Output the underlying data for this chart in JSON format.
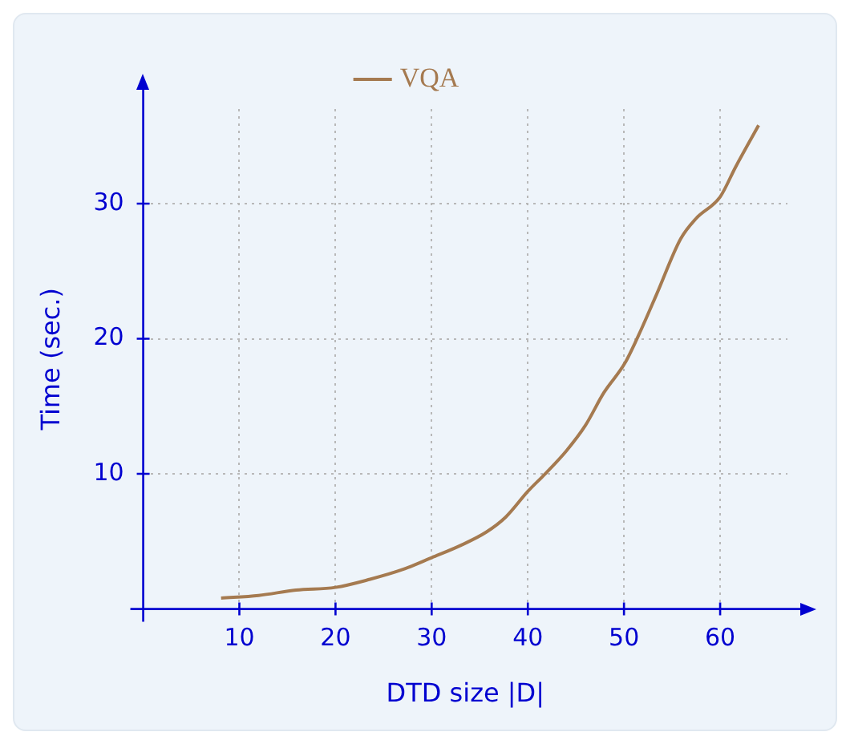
{
  "chart_data": {
    "type": "line",
    "xlabel": "DTD size |D|",
    "ylabel": "Time (sec.)",
    "xlim": [
      0,
      67
    ],
    "ylim": [
      0,
      37
    ],
    "xticks": [
      10,
      20,
      30,
      40,
      50,
      60
    ],
    "yticks": [
      10,
      20,
      30
    ],
    "grid": true,
    "legend": "top",
    "marker": "none",
    "line_style": "solid",
    "series": [
      {
        "name": "VQA",
        "color": "#a57a50",
        "x": [
          8.1,
          12,
          15.9,
          20,
          23.6,
          26.9,
          30,
          33,
          35.7,
          37.7,
          40,
          41.8,
          44,
          46,
          47.9,
          50.1,
          51.8,
          53.4,
          55.9,
          57.5,
          60,
          61.6,
          64
        ],
        "values": [
          0.8,
          1.0,
          1.4,
          1.6,
          2.2,
          2.9,
          3.8,
          4.7,
          5.7,
          6.8,
          8.7,
          10.0,
          11.7,
          13.6,
          16.0,
          18.2,
          20.7,
          23.3,
          27.4,
          28.9,
          30.5,
          32.7,
          35.8
        ]
      }
    ]
  }
}
